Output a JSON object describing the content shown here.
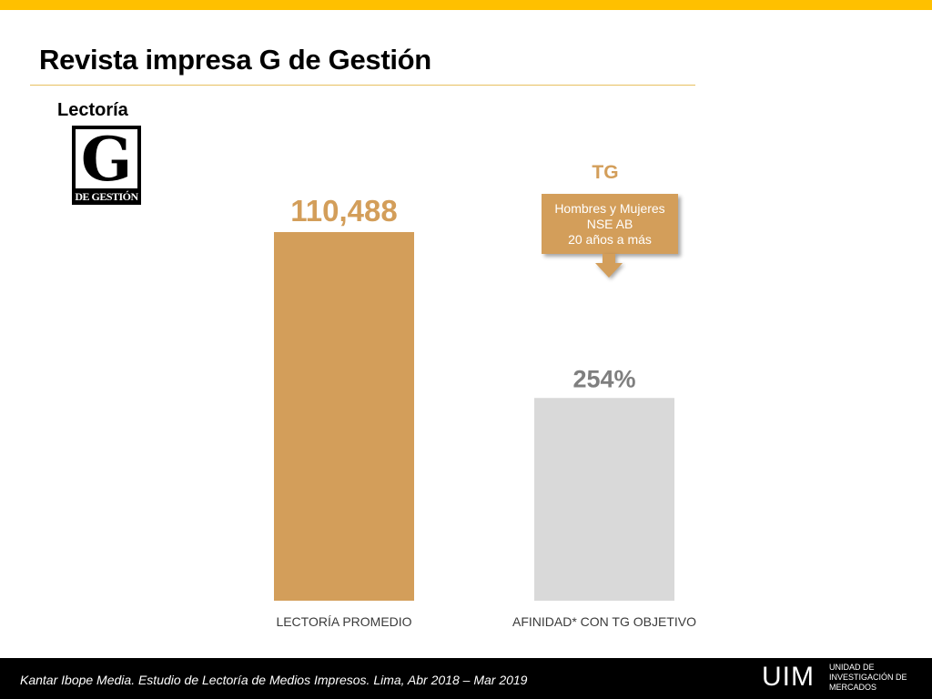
{
  "header": {
    "title": "Revista impresa G de Gestión",
    "section_label": "Lectoría"
  },
  "logo": {
    "letter": "G",
    "subtitle": "DE GESTIÓN"
  },
  "callout": {
    "title": "TG",
    "lines": [
      "Hombres y Mujeres",
      "NSE AB",
      "20 años a más"
    ]
  },
  "chart_data": {
    "type": "bar",
    "categories": [
      "LECTORÍA PROMEDIO",
      "AFINIDAD* CON TG OBJETIVO"
    ],
    "values": [
      110488,
      254
    ],
    "value_labels": [
      "110,488",
      "254%"
    ],
    "colors": [
      "#D39E5A",
      "#D9D9D9"
    ],
    "label_colors": [
      "#D39E5A",
      "#7F7F7F"
    ],
    "relative_heights": [
      1.0,
      0.55
    ],
    "title": "",
    "xlabel": "",
    "ylabel": ""
  },
  "footer": {
    "source": "Kantar Ibope Media. Estudio de Lectoría de Medios Impresos. Lima,  Abr 2018 – Mar 2019",
    "brand": "UIM",
    "brand_lines": [
      "UNIDAD DE",
      "INVESTIGACIÓN DE",
      "MERCADOS"
    ]
  }
}
